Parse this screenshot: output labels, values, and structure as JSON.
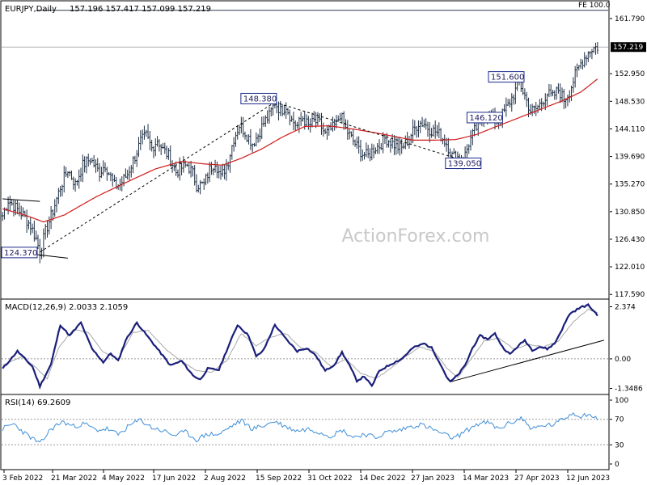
{
  "header": {
    "symbol": "EURJPY,Daily",
    "ohlc": "157.196 157.417 157.099 157.219"
  },
  "watermark": "ActionForex.com",
  "colors": {
    "price_bars": "#1f2f44",
    "moving_average": "#d11a1a",
    "macd_line": "#1a1f7a",
    "macd_signal": "#a8a8a8",
    "rsi_line": "#3f8fd8",
    "grid_dotted": "#9a9a9a",
    "axis": "#000000",
    "label_box": "#1a2a8c",
    "current_tag_bg": "#000000"
  },
  "chart_data": [
    {
      "type": "candlestick",
      "title": "EURJPY,Daily",
      "ohlc_last": {
        "open": 157.196,
        "high": 157.417,
        "low": 157.099,
        "close": 157.219
      },
      "y_tick_labels": [
        "161.790",
        "157.219",
        "152.950",
        "148.530",
        "144.110",
        "139.690",
        "135.270",
        "130.850",
        "126.430",
        "122.010",
        "117.590"
      ],
      "y_ticks": [
        161.79,
        152.95,
        148.53,
        144.11,
        139.69,
        135.27,
        130.85,
        126.43,
        122.01,
        117.59
      ],
      "ylim": [
        117.1,
        164.5
      ],
      "current_price": 157.219,
      "current_price_label": "157.219",
      "x_labels": [
        "3 Feb 2022",
        "21 Mar 2022",
        "4 May 2022",
        "17 Jun 2022",
        "2 Aug 2022",
        "15 Sep 2022",
        "31 Oct 2022",
        "14 Dec 2022",
        "27 Jan 2023",
        "14 Mar 2023",
        "27 Apr 2023",
        "12 Jun 2023"
      ],
      "fe_level": 163.1,
      "fe_label": "FE 100.0",
      "price_path": [
        [
          0,
          130.2
        ],
        [
          3,
          132.7
        ],
        [
          7,
          131.5
        ],
        [
          11,
          130.3
        ],
        [
          15,
          128.6
        ],
        [
          18,
          126.5
        ],
        [
          20,
          124.4
        ],
        [
          23,
          127.6
        ],
        [
          27,
          131.0
        ],
        [
          31,
          134.8
        ],
        [
          35,
          137.6
        ],
        [
          39,
          135.2
        ],
        [
          43,
          138.3
        ],
        [
          47,
          139.3
        ],
        [
          52,
          137.1
        ],
        [
          55,
          138.4
        ],
        [
          60,
          135.0
        ],
        [
          63,
          135.2
        ],
        [
          67,
          136.9
        ],
        [
          71,
          139.7
        ],
        [
          74,
          142.1
        ],
        [
          77,
          143.0
        ],
        [
          80,
          141.0
        ],
        [
          83,
          142.4
        ],
        [
          86,
          140.8
        ],
        [
          89,
          139.8
        ],
        [
          93,
          137.2
        ],
        [
          96,
          137.9
        ],
        [
          99,
          138.3
        ],
        [
          102,
          137.0
        ],
        [
          104,
          135.1
        ],
        [
          108,
          135.2
        ],
        [
          111,
          137.6
        ],
        [
          114,
          138.9
        ],
        [
          117,
          136.3
        ],
        [
          121,
          139.0
        ],
        [
          124,
          142.6
        ],
        [
          127,
          144.7
        ],
        [
          130,
          143.6
        ],
        [
          134,
          141.8
        ],
        [
          137,
          143.1
        ],
        [
          140,
          145.1
        ],
        [
          143,
          146.2
        ],
        [
          146,
          148.38
        ],
        [
          149,
          147.0
        ],
        [
          152,
          147.8
        ],
        [
          155,
          145.5
        ],
        [
          158,
          144.6
        ],
        [
          161,
          145.9
        ],
        [
          164,
          144.5
        ],
        [
          167,
          145.3
        ],
        [
          170,
          145.0
        ],
        [
          173,
          143.2
        ],
        [
          176,
          144.0
        ],
        [
          179,
          144.9
        ],
        [
          181,
          146.5
        ],
        [
          184,
          144.1
        ],
        [
          187,
          142.6
        ],
        [
          190,
          141.3
        ],
        [
          193,
          140.1
        ],
        [
          196,
          139.8
        ],
        [
          199,
          141.0
        ],
        [
          202,
          141.4
        ],
        [
          205,
          142.6
        ],
        [
          208,
          142.1
        ],
        [
          211,
          141.3
        ],
        [
          214,
          141.0
        ],
        [
          217,
          142.2
        ],
        [
          220,
          143.7
        ],
        [
          223,
          145.1
        ],
        [
          226,
          145.0
        ],
        [
          229,
          144.0
        ],
        [
          232,
          143.7
        ],
        [
          235,
          143.0
        ],
        [
          238,
          141.8
        ],
        [
          241,
          139.8
        ],
        [
          244,
          139.6
        ],
        [
          247,
          139.05
        ],
        [
          250,
          141.8
        ],
        [
          253,
          143.8
        ],
        [
          256,
          145.1
        ],
        [
          259,
          146.8
        ],
        [
          262,
          146.12
        ],
        [
          265,
          145.3
        ],
        [
          268,
          146.4
        ],
        [
          271,
          147.9
        ],
        [
          274,
          149.6
        ],
        [
          277,
          151.6
        ],
        [
          280,
          149.4
        ],
        [
          283,
          147.0
        ],
        [
          286,
          147.3
        ],
        [
          289,
          148.4
        ],
        [
          292,
          149.8
        ],
        [
          295,
          149.2
        ],
        [
          298,
          150.4
        ],
        [
          301,
          148.8
        ],
        [
          304,
          150.1
        ],
        [
          307,
          152.7
        ],
        [
          310,
          154.6
        ],
        [
          313,
          156.0
        ],
        [
          316,
          157.0
        ],
        [
          319,
          157.219
        ]
      ],
      "ma_path": [
        [
          0,
          131.3
        ],
        [
          12,
          130.3
        ],
        [
          22,
          129.2
        ],
        [
          33,
          130.3
        ],
        [
          50,
          133.2
        ],
        [
          66,
          135.5
        ],
        [
          82,
          137.7
        ],
        [
          96,
          138.9
        ],
        [
          108,
          138.5
        ],
        [
          118,
          138.3
        ],
        [
          128,
          139.4
        ],
        [
          139,
          140.9
        ],
        [
          150,
          142.8
        ],
        [
          162,
          144.5
        ],
        [
          175,
          144.6
        ],
        [
          190,
          144.0
        ],
        [
          205,
          143.2
        ],
        [
          220,
          142.3
        ],
        [
          232,
          142.3
        ],
        [
          243,
          142.4
        ],
        [
          254,
          143.2
        ],
        [
          264,
          144.4
        ],
        [
          276,
          145.8
        ],
        [
          288,
          147.2
        ],
        [
          300,
          148.6
        ],
        [
          310,
          150.0
        ],
        [
          319,
          152.1
        ]
      ],
      "annotations": [
        {
          "label": "148.380",
          "x": 146,
          "y": 148.38
        },
        {
          "label": "151.600",
          "x": 277,
          "y": 151.6
        },
        {
          "label": "146.120",
          "x": 262,
          "y": 146.12
        },
        {
          "label": "139.050",
          "x": 247,
          "y": 139.05
        },
        {
          "label": "124.370",
          "x": 20,
          "y": 124.37
        }
      ],
      "trendlines": [
        {
          "from": [
            20,
            124.37
          ],
          "to": [
            146,
            148.38
          ],
          "style": "dashed"
        },
        {
          "from": [
            146,
            148.38
          ],
          "to": [
            247,
            139.05
          ],
          "style": "dashed"
        },
        {
          "from": [
            0,
            132.9
          ],
          "to": [
            20,
            132.5
          ],
          "style": "solid"
        },
        {
          "from": [
            0,
            124.6
          ],
          "to": [
            35,
            123.4
          ],
          "style": "solid"
        }
      ]
    },
    {
      "type": "line",
      "title": "MACD(12,26,9) 2.0033 2.1059",
      "y_tick_labels": [
        "2.374",
        "0.00",
        "-1.3486"
      ],
      "ylim": [
        -1.55,
        2.65
      ],
      "zero_line": 0,
      "macd_path": [
        [
          0,
          -0.45
        ],
        [
          8,
          0.35
        ],
        [
          16,
          -0.35
        ],
        [
          20,
          -1.25
        ],
        [
          26,
          -0.25
        ],
        [
          31,
          1.55
        ],
        [
          36,
          1.05
        ],
        [
          42,
          1.65
        ],
        [
          48,
          0.45
        ],
        [
          54,
          -0.15
        ],
        [
          58,
          0.25
        ],
        [
          62,
          -0.1
        ],
        [
          66,
          0.85
        ],
        [
          72,
          1.65
        ],
        [
          78,
          1.0
        ],
        [
          84,
          0.35
        ],
        [
          90,
          -0.3
        ],
        [
          96,
          -0.1
        ],
        [
          102,
          -0.75
        ],
        [
          106,
          -0.95
        ],
        [
          110,
          -0.45
        ],
        [
          116,
          -0.5
        ],
        [
          120,
          0.35
        ],
        [
          126,
          1.55
        ],
        [
          132,
          1.05
        ],
        [
          136,
          0.1
        ],
        [
          140,
          0.4
        ],
        [
          146,
          1.55
        ],
        [
          152,
          0.9
        ],
        [
          158,
          0.35
        ],
        [
          163,
          0.5
        ],
        [
          168,
          0.15
        ],
        [
          173,
          -0.55
        ],
        [
          178,
          -0.25
        ],
        [
          182,
          0.3
        ],
        [
          186,
          -0.3
        ],
        [
          190,
          -1.0
        ],
        [
          194,
          -0.8
        ],
        [
          198,
          -1.25
        ],
        [
          202,
          -0.55
        ],
        [
          208,
          -0.25
        ],
        [
          214,
          0.0
        ],
        [
          220,
          0.5
        ],
        [
          226,
          0.7
        ],
        [
          230,
          0.5
        ],
        [
          234,
          -0.1
        ],
        [
          238,
          -0.8
        ],
        [
          240,
          -1.05
        ],
        [
          244,
          -0.75
        ],
        [
          248,
          -0.3
        ],
        [
          252,
          0.5
        ],
        [
          256,
          1.05
        ],
        [
          260,
          0.9
        ],
        [
          264,
          1.15
        ],
        [
          268,
          0.55
        ],
        [
          272,
          0.2
        ],
        [
          276,
          0.55
        ],
        [
          280,
          0.85
        ],
        [
          284,
          0.4
        ],
        [
          288,
          0.55
        ],
        [
          292,
          0.45
        ],
        [
          296,
          0.7
        ],
        [
          300,
          1.35
        ],
        [
          304,
          2.05
        ],
        [
          310,
          2.35
        ],
        [
          314,
          2.45
        ],
        [
          319,
          2.0
        ]
      ],
      "signal_path": [
        [
          0,
          -0.3
        ],
        [
          10,
          0.1
        ],
        [
          18,
          -0.4
        ],
        [
          24,
          -0.9
        ],
        [
          30,
          0.5
        ],
        [
          38,
          1.35
        ],
        [
          46,
          1.2
        ],
        [
          54,
          0.3
        ],
        [
          62,
          0.0
        ],
        [
          70,
          1.2
        ],
        [
          78,
          1.3
        ],
        [
          88,
          0.4
        ],
        [
          96,
          -0.1
        ],
        [
          104,
          -0.55
        ],
        [
          112,
          -0.6
        ],
        [
          120,
          -0.1
        ],
        [
          128,
          1.15
        ],
        [
          136,
          0.6
        ],
        [
          144,
          1.0
        ],
        [
          152,
          1.15
        ],
        [
          160,
          0.5
        ],
        [
          168,
          0.3
        ],
        [
          176,
          -0.35
        ],
        [
          184,
          0.0
        ],
        [
          192,
          -0.65
        ],
        [
          200,
          -0.9
        ],
        [
          208,
          -0.45
        ],
        [
          216,
          0.1
        ],
        [
          224,
          0.55
        ],
        [
          232,
          0.3
        ],
        [
          238,
          -0.4
        ],
        [
          244,
          -0.85
        ],
        [
          250,
          -0.15
        ],
        [
          258,
          0.8
        ],
        [
          266,
          0.95
        ],
        [
          274,
          0.45
        ],
        [
          282,
          0.65
        ],
        [
          290,
          0.55
        ],
        [
          298,
          0.8
        ],
        [
          306,
          1.7
        ],
        [
          314,
          2.25
        ],
        [
          319,
          2.1
        ]
      ],
      "trendlines": [
        {
          "from": [
            240,
            -1.05
          ],
          "to": [
            319,
            0.85
          ],
          "style": "solid"
        }
      ]
    },
    {
      "type": "line",
      "title": "RSI(14) 69.2609",
      "y_tick_labels": [
        "100",
        "70",
        "30",
        "0"
      ],
      "ylim": [
        0,
        100
      ],
      "levels": [
        70,
        30
      ],
      "rsi_path": [
        [
          0,
          55
        ],
        [
          6,
          63
        ],
        [
          12,
          48
        ],
        [
          18,
          36
        ],
        [
          20,
          31
        ],
        [
          26,
          55
        ],
        [
          32,
          66
        ],
        [
          38,
          59
        ],
        [
          44,
          63
        ],
        [
          50,
          53
        ],
        [
          56,
          55
        ],
        [
          62,
          46
        ],
        [
          68,
          60
        ],
        [
          74,
          69
        ],
        [
          80,
          57
        ],
        [
          86,
          52
        ],
        [
          92,
          45
        ],
        [
          98,
          50
        ],
        [
          104,
          38
        ],
        [
          110,
          47
        ],
        [
          116,
          46
        ],
        [
          122,
          58
        ],
        [
          128,
          68
        ],
        [
          134,
          55
        ],
        [
          140,
          60
        ],
        [
          146,
          67
        ],
        [
          152,
          58
        ],
        [
          158,
          52
        ],
        [
          164,
          55
        ],
        [
          170,
          50
        ],
        [
          176,
          44
        ],
        [
          182,
          53
        ],
        [
          188,
          42
        ],
        [
          194,
          47
        ],
        [
          200,
          41
        ],
        [
          206,
          50
        ],
        [
          212,
          52
        ],
        [
          218,
          58
        ],
        [
          224,
          62
        ],
        [
          230,
          55
        ],
        [
          236,
          47
        ],
        [
          242,
          40
        ],
        [
          248,
          51
        ],
        [
          254,
          62
        ],
        [
          260,
          65
        ],
        [
          266,
          55
        ],
        [
          272,
          64
        ],
        [
          278,
          72
        ],
        [
          284,
          55
        ],
        [
          290,
          60
        ],
        [
          296,
          62
        ],
        [
          302,
          73
        ],
        [
          306,
          80
        ],
        [
          310,
          75
        ],
        [
          314,
          79
        ],
        [
          319,
          69.26
        ]
      ]
    }
  ]
}
